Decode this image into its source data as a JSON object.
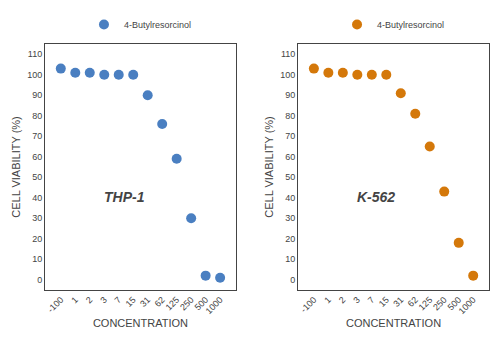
{
  "chart_data": [
    {
      "type": "scatter",
      "xlabel": "CONCENTRATION",
      "ylabel": "CELL VIABILITY (%)",
      "categories": [
        "-100",
        "1",
        "2",
        "3",
        "7",
        "15",
        "31",
        "62",
        "125",
        "250",
        "500",
        "1000"
      ],
      "series": [
        {
          "name": "4-Butylresorcinol",
          "color": "#4a7fc1",
          "values": [
            103,
            101,
            101,
            100,
            100,
            100,
            90,
            76,
            59,
            30,
            2,
            1
          ]
        }
      ],
      "annotations": [
        "THP-1"
      ],
      "ylim": [
        -5,
        115
      ],
      "yticks": [
        0,
        10,
        20,
        30,
        40,
        50,
        60,
        70,
        80,
        90,
        100,
        110
      ],
      "grid": false,
      "legend": "top",
      "marker": "circle"
    },
    {
      "type": "scatter",
      "xlabel": "CONCENTRATION",
      "ylabel": "CELL VIABILITY (%)",
      "categories": [
        "-100",
        "1",
        "2",
        "3",
        "7",
        "15",
        "31",
        "62",
        "125",
        "250",
        "500",
        "1000"
      ],
      "series": [
        {
          "name": "4-Butylresorcinol",
          "color": "#d4780a",
          "values": [
            103,
            101,
            101,
            100,
            100,
            100,
            91,
            81,
            65,
            43,
            18,
            2
          ]
        }
      ],
      "annotations": [
        "K-562"
      ],
      "ylim": [
        -5,
        115
      ],
      "yticks": [
        0,
        10,
        20,
        30,
        40,
        50,
        60,
        70,
        80,
        90,
        100,
        110
      ],
      "grid": false,
      "legend": "top",
      "marker": "circle"
    }
  ]
}
